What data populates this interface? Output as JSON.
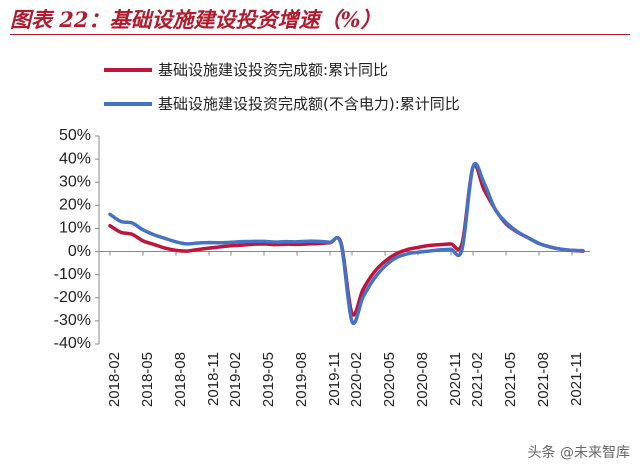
{
  "figure_title": "图表 22：基础设施建设投资增速（%）",
  "watermark": "头条 @未来智库",
  "colors": {
    "title": "#b01c2e",
    "series1": "#c0143c",
    "series2": "#4472c4"
  },
  "chart_data": {
    "type": "line",
    "title": "",
    "xlabel": "",
    "ylabel": "",
    "ylim": [
      -40,
      50
    ],
    "ytick_step": 10,
    "yticks": [
      "50%",
      "40%",
      "30%",
      "20%",
      "10%",
      "0%",
      "-10%",
      "-20%",
      "-30%",
      "-40%"
    ],
    "xticks": [
      "2018-02",
      "2018-05",
      "2018-08",
      "2018-11",
      "2019-02",
      "2019-05",
      "2019-08",
      "2019-11",
      "2020-02",
      "2020-05",
      "2020-08",
      "2020-11",
      "2021-02",
      "2021-05",
      "2021-08",
      "2021-11"
    ],
    "grid": false,
    "legend_position": "top",
    "x": [
      "2018-02",
      "2018-03",
      "2018-04",
      "2018-05",
      "2018-06",
      "2018-07",
      "2018-08",
      "2018-09",
      "2018-10",
      "2018-11",
      "2018-12",
      "2019-02",
      "2019-03",
      "2019-04",
      "2019-05",
      "2019-06",
      "2019-07",
      "2019-08",
      "2019-09",
      "2019-10",
      "2019-11",
      "2019-12",
      "2020-02",
      "2020-03",
      "2020-04",
      "2020-05",
      "2020-06",
      "2020-07",
      "2020-08",
      "2020-09",
      "2020-10",
      "2020-11",
      "2020-12",
      "2021-02",
      "2021-03",
      "2021-04",
      "2021-05",
      "2021-06",
      "2021-07",
      "2021-08",
      "2021-09",
      "2021-10",
      "2021-11",
      "2021-12"
    ],
    "series": [
      {
        "name": "基础设施建设投资完成额:累计同比",
        "values": [
          11.2,
          8.3,
          7.5,
          4.6,
          3.1,
          1.5,
          0.5,
          0.2,
          0.9,
          1.5,
          2.0,
          2.5,
          2.8,
          3.2,
          3.3,
          3.0,
          3.2,
          3.1,
          3.3,
          3.5,
          3.8,
          3.8,
          -26.8,
          -16.4,
          -9.0,
          -4.2,
          -1.0,
          0.8,
          1.8,
          2.6,
          3.0,
          3.3,
          3.4,
          36.6,
          26.8,
          18.4,
          12.0,
          8.5,
          6.0,
          3.5,
          2.0,
          1.0,
          0.5,
          0.2
        ]
      },
      {
        "name": "基础设施建设投资完成额(不含电力):累计同比",
        "values": [
          16.1,
          13.0,
          12.4,
          9.4,
          7.3,
          5.7,
          4.2,
          3.3,
          3.7,
          3.9,
          3.8,
          4.0,
          4.3,
          4.4,
          4.4,
          4.1,
          4.3,
          4.2,
          4.5,
          4.4,
          4.0,
          3.3,
          -30.3,
          -19.7,
          -11.8,
          -6.3,
          -2.7,
          -1.0,
          -0.3,
          0.2,
          0.7,
          1.0,
          0.9,
          36.6,
          29.7,
          18.4,
          12.6,
          8.7,
          6.0,
          3.5,
          2.0,
          1.0,
          0.5,
          0.4
        ]
      }
    ]
  }
}
